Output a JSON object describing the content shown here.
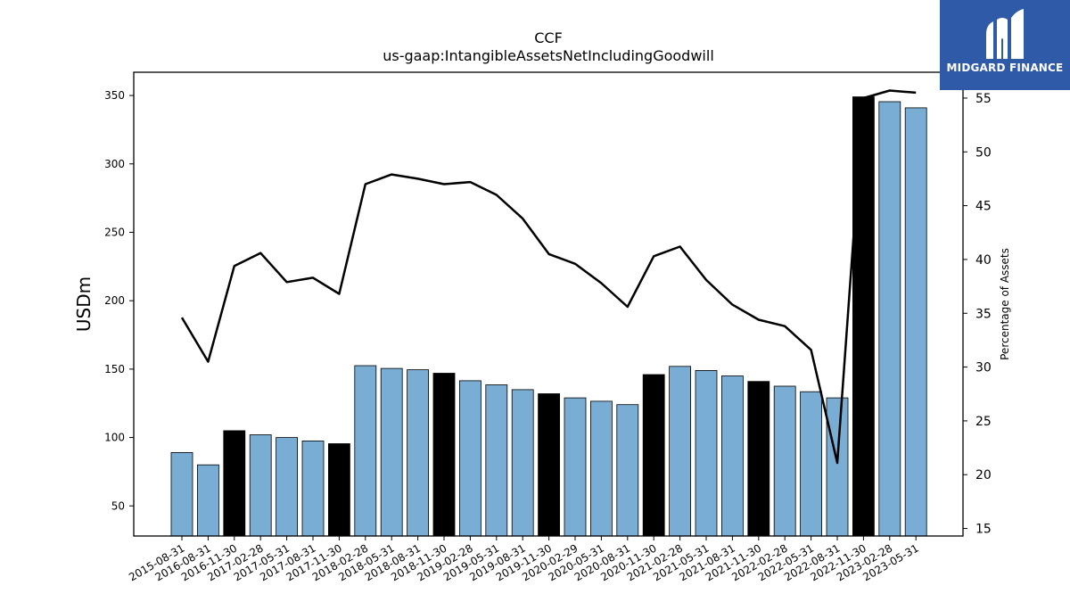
{
  "brand": {
    "name": "MIDGARD FINANCE"
  },
  "chart_data": {
    "type": "bar",
    "title": "CCF",
    "subtitle": "us-gaap:IntangibleAssetsNetIncludingGoodwill",
    "ylabel": "USDm",
    "y2label": "Percentage of Assets",
    "ylim": [
      28,
      367
    ],
    "y2lim": [
      14.3,
      57.4
    ],
    "yticks": [
      50,
      100,
      150,
      200,
      250,
      300,
      350
    ],
    "y2ticks": [
      15,
      20,
      25,
      30,
      35,
      40,
      45,
      50,
      55
    ],
    "categories": [
      "2015-08-31",
      "2016-08-31",
      "2016-11-30",
      "2017-02-28",
      "2017-05-31",
      "2017-08-31",
      "2017-11-30",
      "2018-02-28",
      "2018-05-31",
      "2018-08-31",
      "2018-11-30",
      "2019-02-28",
      "2019-05-31",
      "2019-08-31",
      "2019-11-30",
      "2020-02-29",
      "2020-05-31",
      "2020-08-31",
      "2020-11-30",
      "2021-02-28",
      "2021-05-31",
      "2021-08-31",
      "2021-11-30",
      "2022-02-28",
      "2022-05-31",
      "2022-08-31",
      "2022-11-30",
      "2023-02-28",
      "2023-05-31"
    ],
    "series": [
      {
        "role": "bars",
        "values": [
          89,
          80,
          105,
          102,
          100,
          97.5,
          95.5,
          152.5,
          150.5,
          149.5,
          147,
          141.5,
          138.5,
          135,
          132,
          129,
          126.5,
          124,
          146,
          152,
          149,
          145,
          141,
          137.5,
          133.5,
          129,
          349,
          345.5,
          341
        ],
        "highlight": [
          false,
          false,
          true,
          false,
          false,
          false,
          true,
          false,
          false,
          false,
          true,
          false,
          false,
          false,
          true,
          false,
          false,
          false,
          true,
          false,
          false,
          false,
          true,
          false,
          false,
          false,
          true,
          false,
          false
        ],
        "color": "#7aadd3",
        "highlight_color": "#000000"
      },
      {
        "role": "line",
        "axis": "right",
        "values": [
          34.6,
          30.5,
          39.4,
          40.6,
          37.9,
          38.3,
          36.8,
          47.0,
          47.9,
          47.5,
          47.0,
          47.2,
          46.0,
          43.8,
          40.5,
          39.6,
          37.8,
          35.6,
          40.3,
          41.2,
          38.1,
          35.8,
          34.4,
          33.8,
          31.6,
          21.1,
          55.0,
          55.7,
          55.5
        ],
        "color": "#000000"
      }
    ]
  }
}
